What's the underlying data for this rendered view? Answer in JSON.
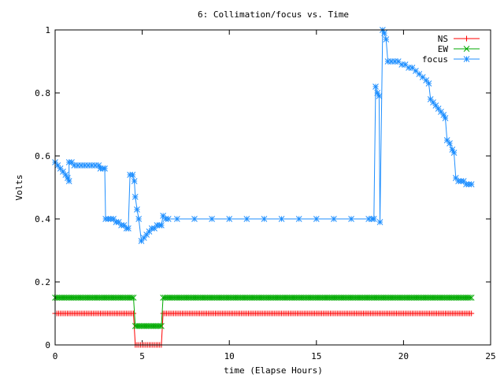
{
  "chart_data": {
    "type": "line",
    "title": "6: Collimation/focus vs. Time",
    "xlabel": "time (Elapse Hours)",
    "ylabel": "Volts",
    "xlim": [
      0,
      25
    ],
    "ylim": [
      0,
      1
    ],
    "x_ticks": [
      0,
      5,
      10,
      15,
      20,
      25
    ],
    "y_ticks": [
      0,
      0.2,
      0.4,
      0.6,
      0.8,
      1
    ],
    "x_tick_labels": [
      "0",
      "5",
      "10",
      "15",
      "20",
      "25"
    ],
    "y_tick_labels": [
      "0",
      "0.2",
      "0.4",
      "0.6",
      "0.8",
      "1"
    ],
    "grid": false,
    "legend_position": "top-right",
    "series": [
      {
        "name": "NS",
        "color": "#ff0000",
        "marker": "plus",
        "segments": [
          {
            "x_range": [
              0,
              4.5
            ],
            "y": 0.1
          },
          {
            "x_range": [
              4.6,
              6.1
            ],
            "y": 0.0
          },
          {
            "x_range": [
              6.2,
              23.9
            ],
            "y": 0.1
          }
        ]
      },
      {
        "name": "EW",
        "color": "#00aa00",
        "marker": "x",
        "segments": [
          {
            "x_range": [
              0,
              4.5
            ],
            "y": 0.15
          },
          {
            "x_range": [
              4.6,
              6.1
            ],
            "y": 0.06
          },
          {
            "x_range": [
              6.2,
              23.9
            ],
            "y": 0.15
          }
        ]
      },
      {
        "name": "focus",
        "color": "#1f8fff",
        "marker": "star",
        "points": [
          [
            0.0,
            0.58
          ],
          [
            0.15,
            0.57
          ],
          [
            0.3,
            0.56
          ],
          [
            0.45,
            0.55
          ],
          [
            0.6,
            0.54
          ],
          [
            0.72,
            0.53
          ],
          [
            0.8,
            0.52
          ],
          [
            0.8,
            0.58
          ],
          [
            0.95,
            0.58
          ],
          [
            1.1,
            0.57
          ],
          [
            1.3,
            0.57
          ],
          [
            1.5,
            0.57
          ],
          [
            1.7,
            0.57
          ],
          [
            1.9,
            0.57
          ],
          [
            2.1,
            0.57
          ],
          [
            2.3,
            0.57
          ],
          [
            2.5,
            0.57
          ],
          [
            2.6,
            0.56
          ],
          [
            2.75,
            0.56
          ],
          [
            2.85,
            0.56
          ],
          [
            2.9,
            0.4
          ],
          [
            3.05,
            0.4
          ],
          [
            3.2,
            0.4
          ],
          [
            3.35,
            0.4
          ],
          [
            3.5,
            0.39
          ],
          [
            3.65,
            0.39
          ],
          [
            3.8,
            0.38
          ],
          [
            3.95,
            0.38
          ],
          [
            4.1,
            0.37
          ],
          [
            4.2,
            0.37
          ],
          [
            4.3,
            0.54
          ],
          [
            4.45,
            0.54
          ],
          [
            4.55,
            0.52
          ],
          [
            4.6,
            0.47
          ],
          [
            4.7,
            0.43
          ],
          [
            4.8,
            0.4
          ],
          [
            4.95,
            0.33
          ],
          [
            5.1,
            0.34
          ],
          [
            5.25,
            0.35
          ],
          [
            5.4,
            0.36
          ],
          [
            5.55,
            0.37
          ],
          [
            5.7,
            0.37
          ],
          [
            5.85,
            0.38
          ],
          [
            6.0,
            0.38
          ],
          [
            6.1,
            0.38
          ],
          [
            6.2,
            0.41
          ],
          [
            6.35,
            0.4
          ],
          [
            6.5,
            0.4
          ],
          [
            7.0,
            0.4
          ],
          [
            8.0,
            0.4
          ],
          [
            9.0,
            0.4
          ],
          [
            10.0,
            0.4
          ],
          [
            11.0,
            0.4
          ],
          [
            12.0,
            0.4
          ],
          [
            13.0,
            0.4
          ],
          [
            14.0,
            0.4
          ],
          [
            15.0,
            0.4
          ],
          [
            16.0,
            0.4
          ],
          [
            17.0,
            0.4
          ],
          [
            18.0,
            0.4
          ],
          [
            18.2,
            0.4
          ],
          [
            18.3,
            0.4
          ],
          [
            18.4,
            0.82
          ],
          [
            18.5,
            0.8
          ],
          [
            18.6,
            0.79
          ],
          [
            18.65,
            0.39
          ],
          [
            18.8,
            1.0
          ],
          [
            18.9,
            0.99
          ],
          [
            19.0,
            0.97
          ],
          [
            19.1,
            0.9
          ],
          [
            19.3,
            0.9
          ],
          [
            19.5,
            0.9
          ],
          [
            19.7,
            0.9
          ],
          [
            19.9,
            0.89
          ],
          [
            20.1,
            0.89
          ],
          [
            20.3,
            0.88
          ],
          [
            20.5,
            0.88
          ],
          [
            20.7,
            0.87
          ],
          [
            20.9,
            0.86
          ],
          [
            21.1,
            0.85
          ],
          [
            21.3,
            0.84
          ],
          [
            21.45,
            0.83
          ],
          [
            21.55,
            0.78
          ],
          [
            21.7,
            0.77
          ],
          [
            21.85,
            0.76
          ],
          [
            22.0,
            0.75
          ],
          [
            22.15,
            0.74
          ],
          [
            22.3,
            0.73
          ],
          [
            22.4,
            0.72
          ],
          [
            22.5,
            0.65
          ],
          [
            22.65,
            0.64
          ],
          [
            22.8,
            0.62
          ],
          [
            22.9,
            0.61
          ],
          [
            23.0,
            0.53
          ],
          [
            23.15,
            0.52
          ],
          [
            23.3,
            0.52
          ],
          [
            23.45,
            0.52
          ],
          [
            23.6,
            0.51
          ],
          [
            23.75,
            0.51
          ],
          [
            23.9,
            0.51
          ]
        ]
      }
    ]
  }
}
